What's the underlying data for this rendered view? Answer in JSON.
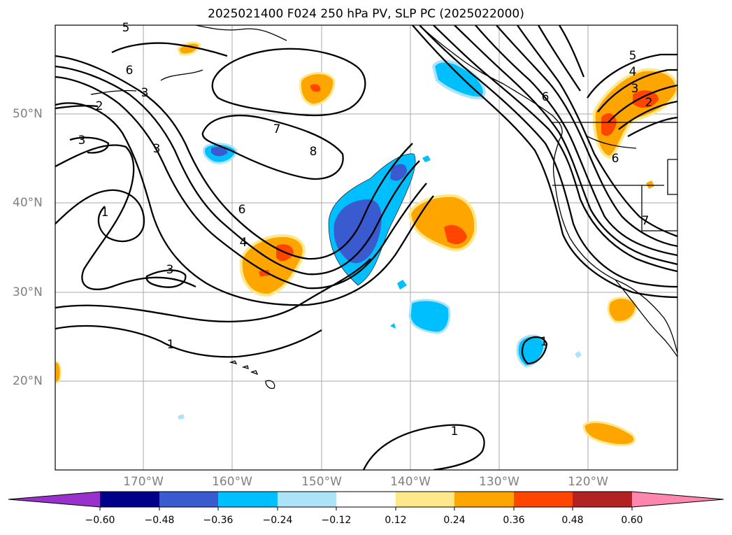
{
  "title": "2025021400 F024 250 hPa PV, SLP PC (2025022000)",
  "lat_labels": [
    "50°N",
    "40°N",
    "30°N",
    "20°N"
  ],
  "lon_labels": [
    "170°W",
    "160°W",
    "150°W",
    "140°W",
    "130°W",
    "120°W"
  ],
  "colorbar": {
    "ticks": [
      "−0.60",
      "−0.48",
      "−0.36",
      "−0.24",
      "−0.12",
      "0.12",
      "0.24",
      "0.36",
      "0.48",
      "0.60"
    ],
    "colors": [
      "#9932cc",
      "#00008b",
      "#3a5bd0",
      "#00bfff",
      "#ade3f9",
      "#ffffff",
      "#ffe88a",
      "#ffa500",
      "#ff4500",
      "#b22222",
      "#ff86ae"
    ]
  },
  "contour_labels": [
    "5",
    "6",
    "3",
    "2",
    "3",
    "3",
    "1",
    "7",
    "8",
    "6",
    "4",
    "3",
    "1",
    "1",
    "1",
    "5",
    "4",
    "3",
    "2",
    "6",
    "6",
    "7"
  ]
}
